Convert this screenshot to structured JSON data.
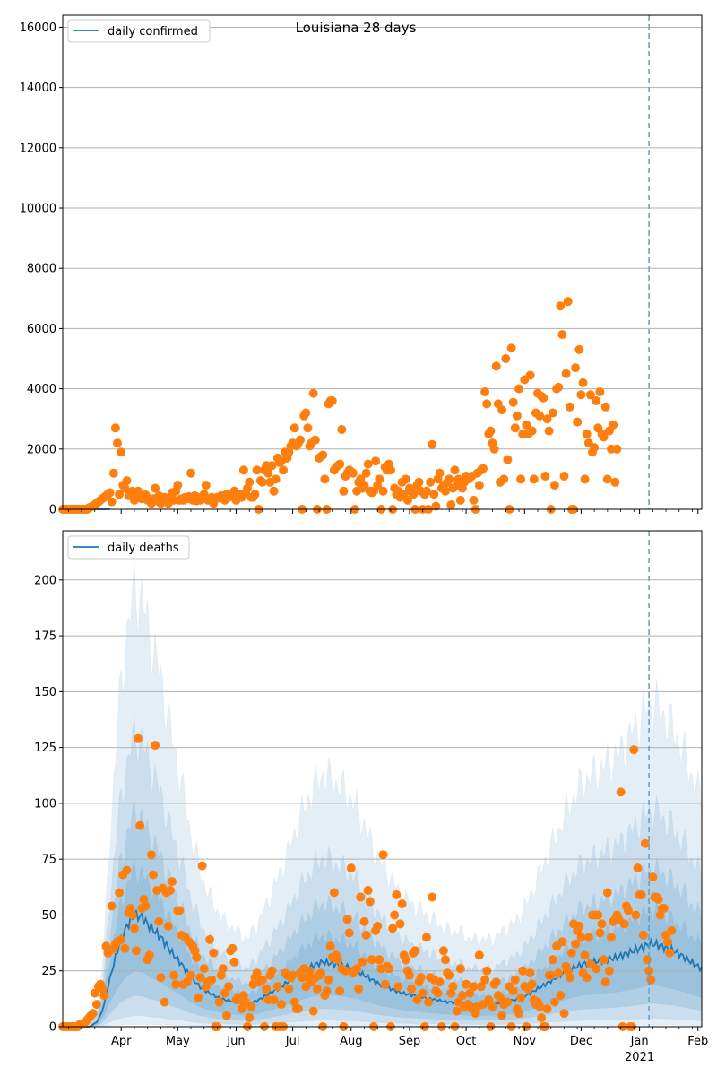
{
  "chart_data": [
    {
      "type": "scatter",
      "title": "Louisiana 28 days",
      "legend": [
        "daily confirmed"
      ],
      "legend_position": "top-left",
      "x_tick_labels": [
        "Apr",
        "May",
        "Jun",
        "Jul",
        "Aug",
        "Sep",
        "Oct",
        "Nov",
        "Dec",
        "Jan",
        "Feb"
      ],
      "x_tick_sublabel": "2021",
      "y_ticks": [
        0,
        2000,
        4000,
        6000,
        8000,
        10000,
        12000,
        14000,
        16000
      ],
      "y_tick_labels": [
        "0",
        "2000",
        "4000",
        "6000",
        "8000",
        "10000",
        "12000",
        "14000",
        "16000"
      ],
      "ylim": [
        0,
        16400
      ],
      "xlim_days": [
        0,
        339
      ],
      "vline_day": 311,
      "grid": "horizontal",
      "colors": {
        "line": "#1f77b4",
        "points": "#ff7f0e"
      },
      "series": [
        {
          "name": "observed daily confirmed",
          "start_day": 0,
          "values": [
            0,
            0,
            0,
            0,
            0,
            0,
            0,
            0,
            0,
            0,
            0,
            0,
            0,
            0,
            50,
            80,
            120,
            150,
            200,
            250,
            300,
            350,
            400,
            450,
            500,
            550,
            250,
            1200,
            2700,
            2200,
            500,
            1900,
            800,
            700,
            950,
            450,
            500,
            600,
            300,
            550,
            600,
            500,
            350,
            450,
            480,
            300,
            350,
            200,
            350,
            700,
            280,
            450,
            200,
            250,
            400,
            350,
            200,
            400,
            550,
            300,
            600,
            800,
            300,
            350,
            300,
            400,
            350,
            420,
            1200,
            300,
            450,
            280,
            400,
            300,
            350,
            500,
            800,
            300,
            300,
            400,
            200,
            350,
            400,
            380,
            450,
            350,
            300,
            500,
            400,
            450,
            500,
            600,
            300,
            450,
            500,
            400,
            1300,
            550,
            700,
            900,
            400,
            400,
            500,
            1300,
            0,
            950,
            900,
            1300,
            1450,
            1200,
            900,
            1450,
            600,
            1000,
            1700,
            1550,
            1600,
            1300,
            1900,
            1700,
            1900,
            2100,
            2200,
            2700,
            2100,
            2200,
            2300,
            0,
            3100,
            3200,
            2700,
            2100,
            2200,
            3850,
            2300,
            0,
            1700,
            1750,
            1800,
            1000,
            0,
            3500,
            3600,
            3600,
            1300,
            1400,
            1450,
            1500,
            2650,
            600,
            1100,
            1200,
            1300,
            1250,
            1200,
            0,
            600,
            900,
            1000,
            700,
            800,
            1200,
            1500,
            600,
            550,
            600,
            1600,
            800,
            1000,
            0,
            600,
            1400,
            1300,
            1500,
            1300,
            0,
            700,
            500,
            600,
            400,
            900,
            500,
            1000,
            300,
            700,
            600,
            500,
            0,
            800,
            900,
            600,
            0,
            500,
            600,
            0,
            900,
            2150,
            500,
            100,
            1000,
            1200,
            700,
            800,
            600,
            900,
            1000,
            150,
            700,
            1300,
            800,
            1000,
            300,
            700,
            900,
            1100,
            1000,
            1050,
            1100,
            300,
            0,
            1200,
            800,
            1300,
            1350,
            3900,
            3500,
            2500,
            2600,
            2200,
            2000,
            4750,
            3500,
            900,
            3300,
            1000,
            5000,
            1650,
            0,
            5350,
            3550,
            2700,
            3100,
            4000,
            1000,
            2500,
            4300,
            2800,
            2500,
            4450,
            2600,
            1000,
            3200,
            3850,
            3100,
            3750,
            3700,
            1100,
            3000,
            2600,
            0,
            3200,
            800,
            4000,
            4050,
            6750,
            5800,
            1100,
            4500,
            6900,
            3400,
            0,
            0,
            4700,
            2900,
            5300,
            3800,
            4200,
            1000,
            2500,
            2200,
            3800,
            1900,
            2050,
            3600,
            2700,
            3900,
            2500,
            2400,
            3400,
            1000,
            2600,
            2000,
            2800,
            900,
            2000
          ]
        },
        {
          "name": "modelled baseline",
          "start_day": 0,
          "values": [
            0,
            0,
            0,
            0,
            0,
            0,
            0,
            0,
            0,
            0,
            0,
            0,
            0,
            0,
            0,
            0,
            0,
            0,
            0,
            0,
            0,
            0,
            0,
            0,
            0,
            0
          ]
        }
      ]
    },
    {
      "type": "scatter",
      "title": "",
      "legend": [
        "daily deaths"
      ],
      "legend_position": "top-left",
      "x_tick_labels": [
        "Apr",
        "May",
        "Jun",
        "Jul",
        "Aug",
        "Sep",
        "Oct",
        "Nov",
        "Dec",
        "Jan",
        "Feb"
      ],
      "x_tick_sublabel": "2021",
      "y_ticks": [
        0,
        25,
        50,
        75,
        100,
        125,
        150,
        175,
        200
      ],
      "y_tick_labels": [
        "0",
        "25",
        "50",
        "75",
        "100",
        "125",
        "150",
        "175",
        "200"
      ],
      "ylim": [
        0,
        222
      ],
      "xlim_days": [
        0,
        339
      ],
      "vline_day": 311,
      "grid": "horizontal",
      "colors": {
        "line": "#1f77b4",
        "points": "#ff7f0e",
        "band": "#1f77b4"
      },
      "mean_line_knots": [
        [
          0,
          0
        ],
        [
          14,
          0
        ],
        [
          16,
          1
        ],
        [
          18,
          2
        ],
        [
          20,
          5
        ],
        [
          22,
          10
        ],
        [
          24,
          18
        ],
        [
          27,
          28
        ],
        [
          30,
          37
        ],
        [
          34,
          45
        ],
        [
          38,
          50
        ],
        [
          42,
          49
        ],
        [
          46,
          45
        ],
        [
          52,
          40
        ],
        [
          58,
          33
        ],
        [
          63,
          28
        ],
        [
          68,
          22
        ],
        [
          74,
          17
        ],
        [
          80,
          14
        ],
        [
          86,
          12
        ],
        [
          92,
          11
        ],
        [
          98,
          10
        ],
        [
          104,
          12
        ],
        [
          110,
          15
        ],
        [
          116,
          18
        ],
        [
          121,
          21
        ],
        [
          126,
          24
        ],
        [
          132,
          27
        ],
        [
          138,
          29
        ],
        [
          144,
          28
        ],
        [
          150,
          27
        ],
        [
          156,
          25
        ],
        [
          162,
          22
        ],
        [
          168,
          19
        ],
        [
          174,
          17
        ],
        [
          180,
          15
        ],
        [
          186,
          14
        ],
        [
          192,
          13
        ],
        [
          198,
          12
        ],
        [
          204,
          11
        ],
        [
          210,
          11
        ],
        [
          216,
          10
        ],
        [
          222,
          10
        ],
        [
          228,
          10
        ],
        [
          234,
          11
        ],
        [
          240,
          12
        ],
        [
          246,
          14
        ],
        [
          252,
          17
        ],
        [
          258,
          20
        ],
        [
          264,
          23
        ],
        [
          270,
          26
        ],
        [
          276,
          28
        ],
        [
          282,
          29
        ],
        [
          288,
          30
        ],
        [
          294,
          31
        ],
        [
          300,
          33
        ],
        [
          306,
          35
        ],
        [
          311,
          37
        ],
        [
          314,
          37
        ],
        [
          318,
          36
        ],
        [
          324,
          34
        ],
        [
          330,
          31
        ],
        [
          335,
          28
        ],
        [
          339,
          26
        ]
      ],
      "band_scales": [
        {
          "name": "band-outer",
          "lower": 0.02,
          "upper": 3.9,
          "opacity": 0.12
        },
        {
          "name": "band-mid-outer",
          "lower": 0.1,
          "upper": 2.6,
          "opacity": 0.13
        },
        {
          "name": "band-mid-inner",
          "lower": 0.28,
          "upper": 1.9,
          "opacity": 0.14
        },
        {
          "name": "band-inner",
          "lower": 0.5,
          "upper": 1.4,
          "opacity": 0.15
        }
      ],
      "series": [
        {
          "name": "daily deaths mean",
          "note": "line drawn from mean_line_knots"
        },
        {
          "name": "observed daily deaths",
          "start_day": 0,
          "values": [
            0,
            0,
            0,
            0,
            0,
            0,
            0,
            0,
            0,
            1,
            1,
            1,
            2,
            3,
            4,
            5,
            6,
            15,
            10,
            18,
            19,
            17,
            14,
            36,
            33,
            34,
            54,
            35,
            37,
            38,
            60,
            39,
            68,
            35,
            70,
            51,
            53,
            50,
            44,
            34,
            129,
            90,
            53,
            57,
            54,
            30,
            32,
            77,
            68,
            126,
            61,
            47,
            22,
            62,
            11,
            60,
            45,
            61,
            65,
            23,
            19,
            52,
            52,
            41,
            19,
            40,
            20,
            38,
            23,
            36,
            34,
            31,
            13,
            22,
            72,
            26,
            18,
            20,
            39,
            21,
            33,
            0,
            0,
            11,
            23,
            26,
            15,
            5,
            18,
            34,
            35,
            29,
            12,
            13,
            12,
            8,
            14,
            11,
            0,
            4,
            9,
            19,
            22,
            24,
            20,
            21,
            21,
            0,
            17,
            12,
            23,
            25,
            12,
            0,
            18,
            0,
            10,
            0,
            24,
            23,
            17,
            22,
            23,
            11,
            8,
            8,
            24,
            22,
            26,
            18,
            22,
            25,
            20,
            7,
            22,
            17,
            23,
            24,
            0,
            14,
            16,
            21,
            36,
            31,
            60,
            32,
            30,
            16,
            26,
            0,
            25,
            48,
            42,
            71,
            24,
            25,
            26,
            17,
            58,
            29,
            47,
            41,
            61,
            56,
            30,
            0,
            43,
            45,
            30,
            26,
            77,
            19,
            27,
            26,
            0,
            44,
            50,
            59,
            18,
            46,
            55,
            32,
            30,
            25,
            23,
            17,
            33,
            34,
            12,
            20,
            22,
            15,
            0,
            40,
            11,
            22,
            58,
            21,
            16,
            15,
            20,
            0,
            34,
            30,
            24,
            23,
            15,
            18,
            0,
            7,
            11,
            26,
            14,
            9,
            19,
            10,
            15,
            8,
            18,
            6,
            9,
            32,
            18,
            10,
            21,
            25,
            12,
            0,
            9,
            19,
            20,
            14,
            13,
            5,
            10,
            11,
            11,
            18,
            0,
            16,
            21,
            8,
            6,
            13,
            25,
            18,
            0,
            17,
            24,
            19,
            12,
            10,
            11,
            9,
            4,
            0,
            0,
            8,
            23,
            23,
            30,
            11,
            36,
            24,
            14,
            38,
            6,
            27,
            25,
            22,
            33,
            46,
            37,
            43,
            45,
            40,
            24,
            32,
            22,
            40,
            28,
            50,
            50,
            26,
            50,
            42,
            46,
            30,
            20,
            60,
            25,
            40,
            47,
            48,
            50,
            48,
            105,
            0,
            46,
            54,
            52,
            0,
            0,
            124,
            50,
            71,
            59,
            59,
            41,
            82,
            30,
            25,
            21,
            67,
            58,
            58,
            57,
            50,
            53,
            53,
            41,
            38,
            33,
            43
          ]
        }
      ]
    }
  ]
}
